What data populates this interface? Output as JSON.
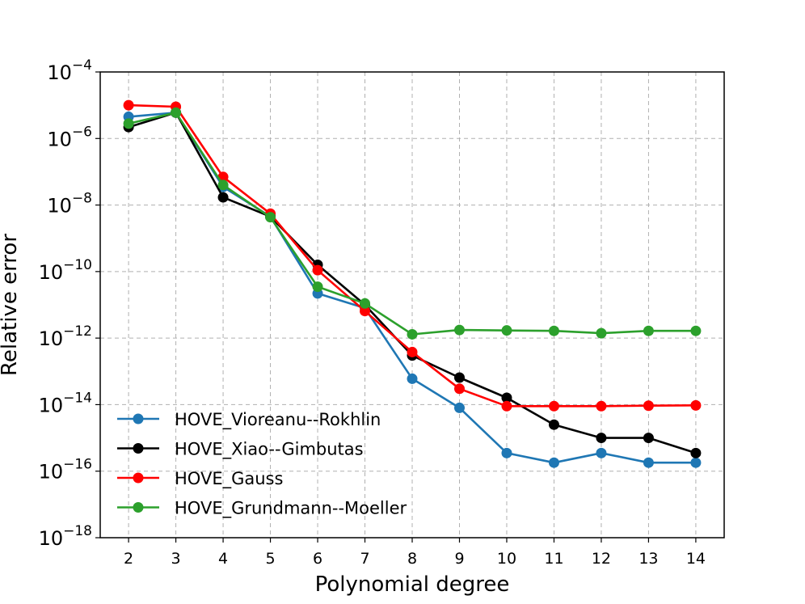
{
  "chart_data": {
    "type": "line",
    "title": "",
    "xlabel": "Polynomial degree",
    "ylabel": "Relative error",
    "yscale": "log",
    "ylim": [
      1e-18,
      0.0001
    ],
    "xlim": [
      1.4,
      14.6
    ],
    "x": [
      2,
      3,
      4,
      5,
      6,
      7,
      8,
      9,
      10,
      11,
      12,
      13,
      14
    ],
    "x_tick_labels": [
      "2",
      "3",
      "4",
      "5",
      "6",
      "7",
      "8",
      "9",
      "10",
      "11",
      "12",
      "13",
      "14"
    ],
    "y_ticks": [
      {
        "base": "10",
        "exp": "−4",
        "value": 0.0001
      },
      {
        "base": "10",
        "exp": "−6",
        "value": 1e-06
      },
      {
        "base": "10",
        "exp": "−8",
        "value": 1e-08
      },
      {
        "base": "10",
        "exp": "−10",
        "value": 1e-10
      },
      {
        "base": "10",
        "exp": "−12",
        "value": 1e-12
      },
      {
        "base": "10",
        "exp": "−14",
        "value": 1e-14
      },
      {
        "base": "10",
        "exp": "−16",
        "value": 1e-16
      },
      {
        "base": "10",
        "exp": "−18",
        "value": 1e-18
      }
    ],
    "grid": true,
    "legend_position": "lower-left",
    "series": [
      {
        "name": "HOVE_Vioreanu--Rokhlin",
        "color": "#1f77b4",
        "values": [
          4.5e-06,
          6e-06,
          3.5e-08,
          4.5e-09,
          2.2e-11,
          8e-12,
          6e-14,
          8e-15,
          3.5e-16,
          1.8e-16,
          3.5e-16,
          1.8e-16,
          1.8e-16
        ]
      },
      {
        "name": "HOVE_Xiao--Gimbutas",
        "color": "#000000",
        "values": [
          2.2e-06,
          6e-06,
          1.7e-08,
          4.5e-09,
          1.6e-10,
          1e-11,
          3e-13,
          6.5e-14,
          1.6e-14,
          2.5e-15,
          1e-15,
          1e-15,
          3.5e-16
        ]
      },
      {
        "name": "HOVE_Gauss",
        "color": "#ff0000",
        "values": [
          1e-05,
          9e-06,
          7e-08,
          5.5e-09,
          1.1e-10,
          6.5e-12,
          3.8e-13,
          3e-14,
          9e-15,
          9e-15,
          9e-15,
          9.3e-15,
          9.5e-15
        ]
      },
      {
        "name": "HOVE_Grundmann--Moeller",
        "color": "#2ca02c",
        "values": [
          2.8e-06,
          6e-06,
          4e-08,
          4.3e-09,
          3.5e-11,
          1.1e-11,
          1.3e-12,
          1.75e-12,
          1.7e-12,
          1.65e-12,
          1.4e-12,
          1.65e-12,
          1.65e-12
        ]
      }
    ]
  }
}
